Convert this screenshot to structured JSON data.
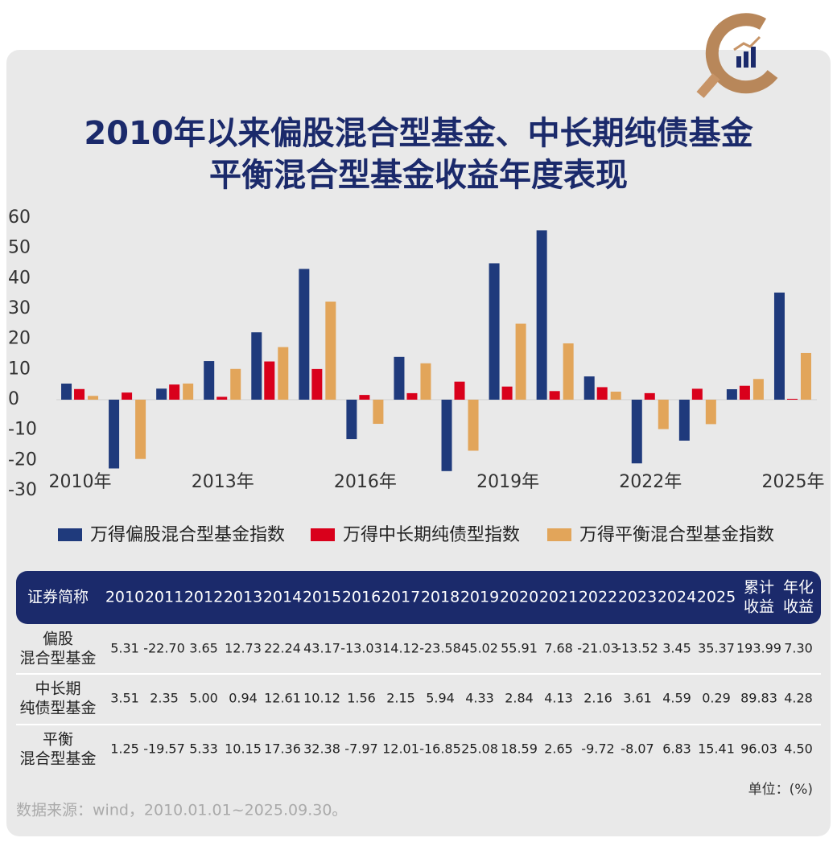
{
  "chart_data": {
    "type": "bar",
    "title": [
      "2010年以来偏股混合型基金、中长期纯债基金",
      "平衡混合型基金收益年度表现"
    ],
    "categories": [
      "2010年",
      null,
      null,
      "2013年",
      null,
      null,
      "2016年",
      null,
      null,
      "2019年",
      null,
      null,
      "2022年",
      null,
      null,
      "2025年"
    ],
    "series": [
      {
        "name": "万得偏股混合型基金指数",
        "color": "#1f3a7c",
        "values": [
          5.31,
          -22.7,
          3.65,
          12.73,
          22.24,
          43.17,
          -13.03,
          14.12,
          -23.58,
          45.02,
          55.91,
          7.68,
          -21.03,
          -13.52,
          3.45,
          35.37
        ]
      },
      {
        "name": "万得中长期纯债型指数",
        "color": "#d9001b",
        "values": [
          3.51,
          2.35,
          5.0,
          0.94,
          12.61,
          10.12,
          1.56,
          2.15,
          5.94,
          4.33,
          2.84,
          4.13,
          2.16,
          3.61,
          4.59,
          0.29
        ]
      },
      {
        "name": "万得平衡混合型基金指数",
        "color": "#e2a55a",
        "values": [
          1.25,
          -19.57,
          5.33,
          10.15,
          17.36,
          32.38,
          -7.97,
          12.01,
          -16.85,
          25.08,
          18.59,
          2.65,
          -9.72,
          -8.07,
          6.83,
          15.41
        ]
      }
    ],
    "ylim": [
      -30,
      60
    ],
    "yticks": [
      -30,
      -20,
      -10,
      0,
      10,
      20,
      30,
      40,
      50,
      60
    ],
    "grid": false,
    "legend": "bottom"
  },
  "table": {
    "header": [
      [
        "证券简称"
      ],
      [
        "2010"
      ],
      [
        "2011"
      ],
      [
        "2012"
      ],
      [
        "2013"
      ],
      [
        "2014"
      ],
      [
        "2015"
      ],
      [
        "2016"
      ],
      [
        "2017"
      ],
      [
        "2018"
      ],
      [
        "2019"
      ],
      [
        "2020"
      ],
      [
        "2021"
      ],
      [
        "2022"
      ],
      [
        "2023"
      ],
      [
        "2024"
      ],
      [
        "2025"
      ],
      [
        "累计",
        "收益"
      ],
      [
        "年化",
        "收益"
      ]
    ],
    "rows": [
      [
        [
          "偏股",
          "混合型基金"
        ],
        "5.31",
        "-22.70",
        "3.65",
        "12.73",
        "22.24",
        "43.17",
        "-13.03",
        "14.12",
        "-23.58",
        "45.02",
        "55.91",
        "7.68",
        "-21.03",
        "-13.52",
        "3.45",
        "35.37",
        "193.99",
        "7.30"
      ],
      [
        [
          "中长期",
          "纯债型基金"
        ],
        "3.51",
        "2.35",
        "5.00",
        "0.94",
        "12.61",
        "10.12",
        "1.56",
        "2.15",
        "5.94",
        "4.33",
        "2.84",
        "4.13",
        "2.16",
        "3.61",
        "4.59",
        "0.29",
        "89.83",
        "4.28"
      ],
      [
        [
          "平衡",
          "混合型基金"
        ],
        "1.25",
        "-19.57",
        "5.33",
        "10.15",
        "17.36",
        "32.38",
        "-7.97",
        "12.01",
        "-16.85",
        "25.08",
        "18.59",
        "2.65",
        "-9.72",
        "-8.07",
        "6.83",
        "15.41",
        "96.03",
        "4.50"
      ]
    ],
    "unit": "单位：(%)"
  },
  "source": "数据来源：wind，2010.01.01~2025.09.30。"
}
